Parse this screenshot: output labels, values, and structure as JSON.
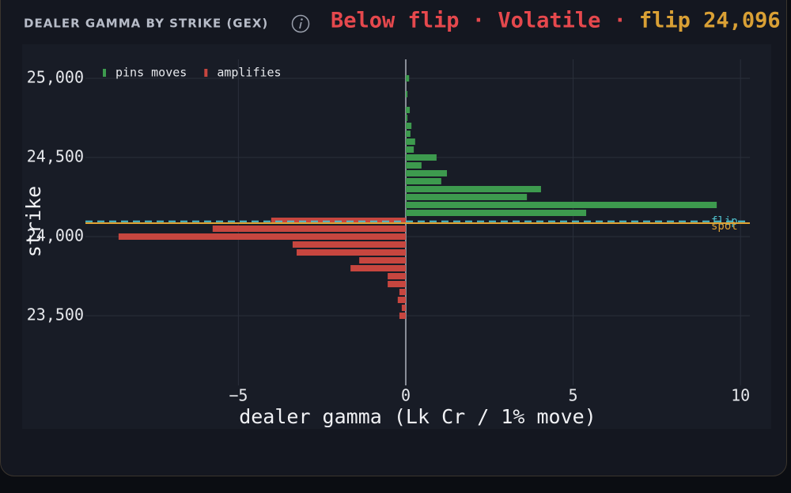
{
  "header": {
    "title": "DEALER GAMMA BY STRIKE (GEX)",
    "status": "Below flip · Volatile ·",
    "flip": "flip 24,096"
  },
  "chart_data": {
    "type": "bar",
    "orientation": "horizontal",
    "xlabel": "dealer gamma (Lk Cr / 1% move)",
    "ylabel": "strike",
    "xlim": [
      -9.57,
      10.28
    ],
    "ylim": [
      23060,
      25120
    ],
    "xticks": [
      {
        "value": -5,
        "label": "−5"
      },
      0,
      5,
      10
    ],
    "yticks": [
      {
        "value": 23500,
        "label": "23,500"
      },
      {
        "value": 24000,
        "label": "24,000"
      },
      {
        "value": 24500,
        "label": "24,500"
      },
      {
        "value": 25000,
        "label": "25,000"
      }
    ],
    "grid": true,
    "legend": "upper left",
    "series": [
      {
        "name": "pins moves",
        "color": "#3d9a4e",
        "y": [
          25000,
          24900,
          24800,
          24750,
          24700,
          24650,
          24600,
          24550,
          24500,
          24450,
          24400,
          24350,
          24300,
          24250,
          24200,
          24150
        ],
        "values": [
          0.1,
          0.05,
          0.12,
          0.05,
          0.17,
          0.14,
          0.28,
          0.24,
          0.92,
          0.47,
          1.23,
          1.06,
          4.04,
          3.62,
          9.29,
          5.39
        ]
      },
      {
        "name": "amplifies",
        "color": "#c7463f",
        "y": [
          24100,
          24050,
          24000,
          23950,
          23900,
          23850,
          23800,
          23750,
          23700,
          23650,
          23600,
          23550,
          23500
        ],
        "values": [
          -4.02,
          -5.77,
          -8.58,
          -3.38,
          -3.26,
          -1.39,
          -1.65,
          -0.54,
          -0.54,
          -0.19,
          -0.24,
          -0.12,
          -0.19
        ]
      }
    ],
    "lines": [
      {
        "name": "flip",
        "value": 24096,
        "color": "#4fc0cc",
        "style": "dashed"
      },
      {
        "name": "spot",
        "value": 24085,
        "color": "#e0a232",
        "style": "solid"
      }
    ]
  }
}
